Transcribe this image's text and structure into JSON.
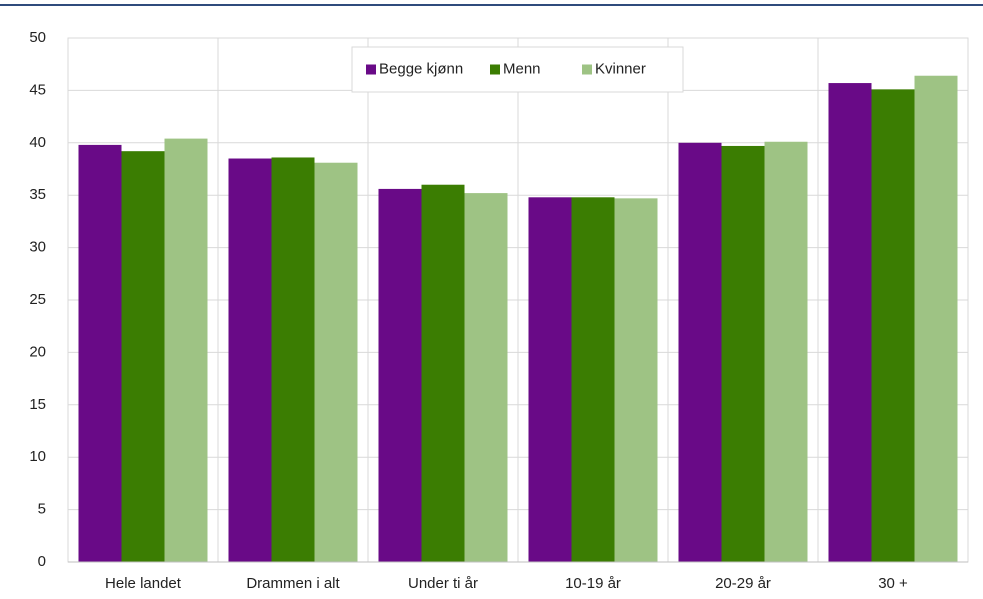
{
  "chart_data": {
    "type": "bar",
    "categories": [
      "Hele landet",
      "Drammen i alt",
      "Under ti år",
      "10-19 år",
      "20-29 år",
      "30 +"
    ],
    "series": [
      {
        "name": "Begge kjønn",
        "color": "#690a87",
        "values": [
          39.8,
          38.5,
          35.6,
          34.8,
          40.0,
          45.7
        ]
      },
      {
        "name": "Menn",
        "color": "#3b7d02",
        "values": [
          39.2,
          38.6,
          36.0,
          34.8,
          39.7,
          45.1
        ]
      },
      {
        "name": "Kvinner",
        "color": "#9ec384",
        "values": [
          40.4,
          38.1,
          35.2,
          34.7,
          40.1,
          46.4
        ]
      }
    ],
    "ylim": [
      0,
      50
    ],
    "yticks": [
      0,
      5,
      10,
      15,
      20,
      25,
      30,
      35,
      40,
      45,
      50
    ],
    "grid": true,
    "legend": "top"
  }
}
